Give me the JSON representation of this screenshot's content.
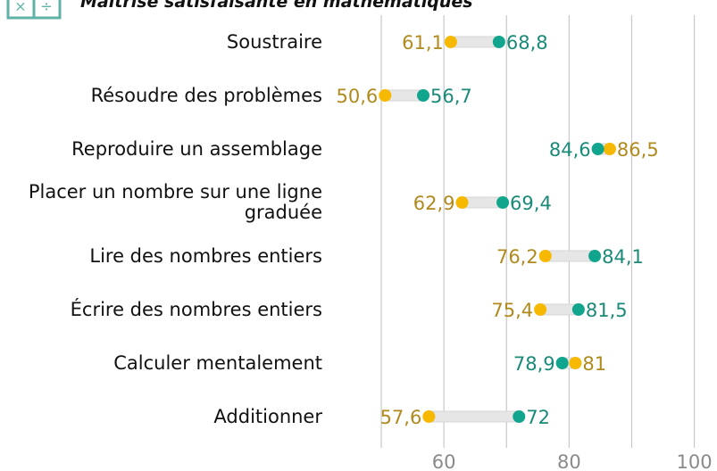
{
  "chart_data": {
    "type": "dumbbell",
    "title": "Maîtrise satisfaisante en mathématiques",
    "categories": [
      "Soustraire",
      "Résoudre des problèmes",
      "Reproduire un assemblage",
      "Placer un nombre sur une ligne graduée",
      "Lire des nombres entiers",
      "Écrire des nombres entiers",
      "Calculer mentalement",
      "Additionner"
    ],
    "series": [
      {
        "color": "#f7b900",
        "label_color": "#b08a1e",
        "values": [
          61.1,
          50.6,
          86.5,
          62.9,
          76.2,
          75.4,
          81,
          57.6
        ],
        "value_labels": [
          "61,1",
          "50,6",
          "86,5",
          "62,9",
          "76,2",
          "75,4",
          "81",
          "57,6"
        ]
      },
      {
        "color": "#12a58e",
        "label_color": "#1a8a78",
        "values": [
          68.8,
          56.7,
          84.6,
          69.4,
          84.1,
          81.5,
          78.9,
          72
        ],
        "value_labels": [
          "68,8",
          "56,7",
          "84,6",
          "69,4",
          "84,1",
          "81,5",
          "78,9",
          "72"
        ]
      }
    ],
    "xlim": [
      44.5,
      103.2
    ],
    "xticks": [
      60,
      80,
      100
    ],
    "xminorticks": [
      50,
      70,
      90
    ],
    "grid": true
  }
}
